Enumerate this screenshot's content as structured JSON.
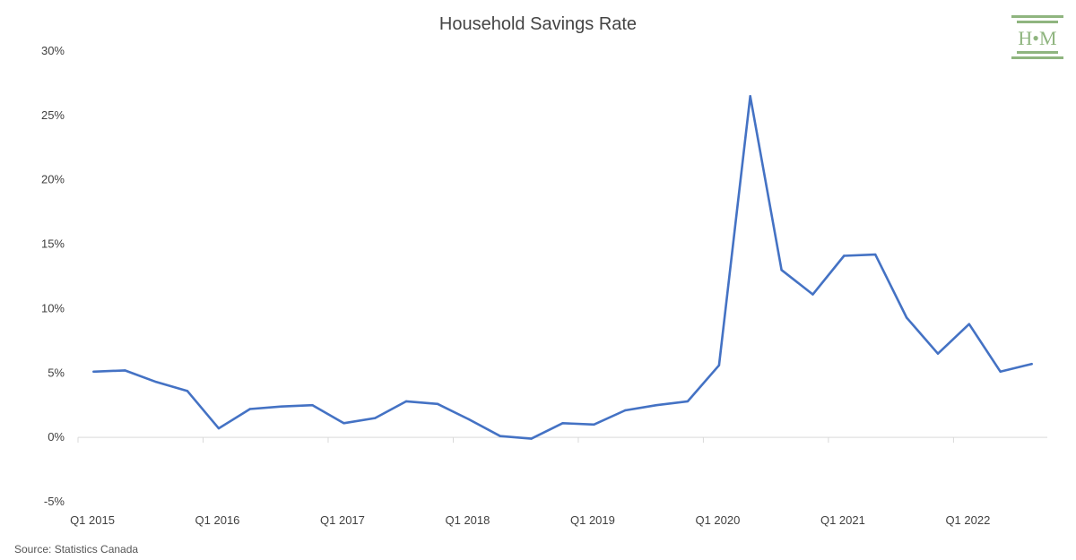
{
  "chart_data": {
    "type": "line",
    "title": "Household Savings Rate",
    "xlabel": "",
    "ylabel": "",
    "ylim": [
      -5,
      30
    ],
    "y_ticks": [
      "30%",
      "25%",
      "20%",
      "15%",
      "10%",
      "5%",
      "0%",
      "-5%"
    ],
    "y_tick_values": [
      30,
      25,
      20,
      15,
      10,
      5,
      0,
      -5
    ],
    "x_tick_labels": [
      "Q1 2015",
      "Q1 2016",
      "Q1 2017",
      "Q1 2018",
      "Q1 2019",
      "Q1 2020",
      "Q1 2021",
      "Q1 2022"
    ],
    "grid": false,
    "legend": "none",
    "categories": [
      "Q1 2015",
      "Q2 2015",
      "Q3 2015",
      "Q4 2015",
      "Q1 2016",
      "Q2 2016",
      "Q3 2016",
      "Q4 2016",
      "Q1 2017",
      "Q2 2017",
      "Q3 2017",
      "Q4 2017",
      "Q1 2018",
      "Q2 2018",
      "Q3 2018",
      "Q4 2018",
      "Q1 2019",
      "Q2 2019",
      "Q3 2019",
      "Q4 2019",
      "Q1 2020",
      "Q2 2020",
      "Q3 2020",
      "Q4 2020",
      "Q1 2021",
      "Q2 2021",
      "Q3 2021",
      "Q4 2021",
      "Q1 2022",
      "Q2 2022",
      "Q3 2022"
    ],
    "series": [
      {
        "values": [
          5.1,
          5.2,
          4.3,
          3.6,
          0.7,
          2.2,
          2.4,
          2.5,
          1.1,
          1.5,
          2.8,
          2.6,
          1.4,
          0.1,
          -0.1,
          1.1,
          1.0,
          2.1,
          2.5,
          2.8,
          5.6,
          26.5,
          13.0,
          11.1,
          14.1,
          14.2,
          9.3,
          6.5,
          8.8,
          5.1,
          5.7
        ]
      }
    ],
    "line_color": "#4472c4"
  },
  "source": "Source: Statistics Canada",
  "logo": {
    "text": "H•M",
    "color": "#8fb57f"
  }
}
